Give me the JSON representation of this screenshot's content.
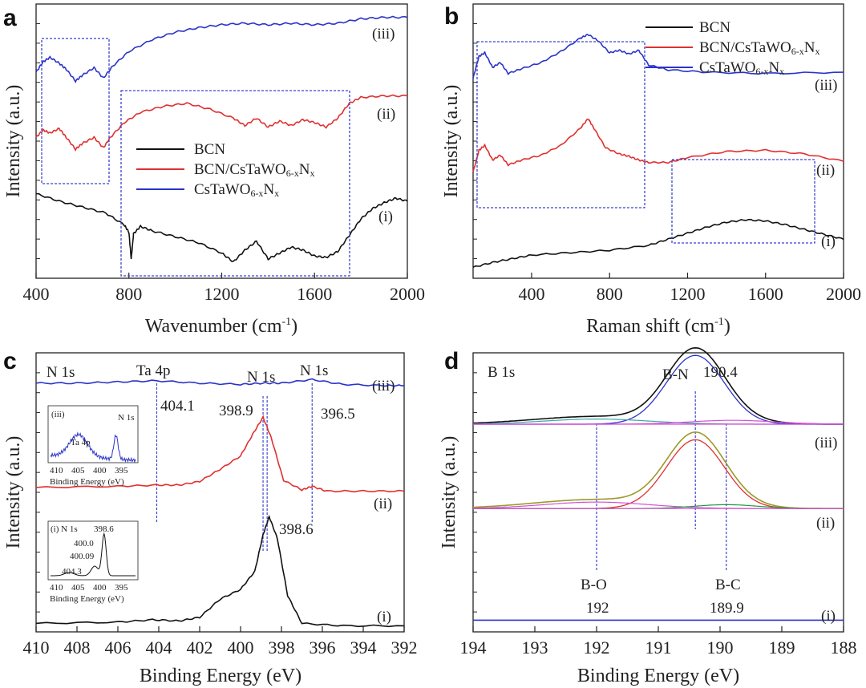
{
  "panels": [
    {
      "id": "a",
      "letter": "a",
      "type": "line",
      "xlabel_main": "Wavenumber (cm",
      "xlabel_sup": "-1",
      "xlabel_tail": ")",
      "ylabel": "Intensity (a.u.)",
      "xlim": [
        400,
        2000
      ],
      "x_ticks": [
        "400",
        "800",
        "1200",
        "1600",
        "2000"
      ],
      "legend": [
        "BCN",
        "BCN/CsTaWO",
        "CsTaWO"
      ],
      "legend_sub": "6-x",
      "legend_n": "N",
      "legend_sub2": "x",
      "curve_labels": [
        "(iii)",
        "(ii)",
        "(i)"
      ],
      "series": [
        {
          "name": "BCN",
          "color": "#111111",
          "y": [
            [
              400,
              0.62
            ],
            [
              500,
              0.57
            ],
            [
              600,
              0.53
            ],
            [
              700,
              0.49
            ],
            [
              780,
              0.41
            ],
            [
              800,
              0.36
            ],
            [
              810,
              0.18
            ],
            [
              820,
              0.35
            ],
            [
              850,
              0.4
            ],
            [
              900,
              0.37
            ],
            [
              1000,
              0.33
            ],
            [
              1100,
              0.29
            ],
            [
              1200,
              0.22
            ],
            [
              1250,
              0.16
            ],
            [
              1300,
              0.24
            ],
            [
              1350,
              0.3
            ],
            [
              1400,
              0.18
            ],
            [
              1450,
              0.22
            ],
            [
              1500,
              0.26
            ],
            [
              1550,
              0.24
            ],
            [
              1600,
              0.2
            ],
            [
              1650,
              0.19
            ],
            [
              1700,
              0.23
            ],
            [
              1750,
              0.34
            ],
            [
              1800,
              0.45
            ],
            [
              1850,
              0.52
            ],
            [
              1900,
              0.56
            ],
            [
              1950,
              0.59
            ],
            [
              2000,
              0.57
            ]
          ]
        },
        {
          "name": "BCN/CsTaWO6-xNx",
          "color": "#e03030",
          "y": [
            [
              400,
              1.0
            ],
            [
              430,
              1.05
            ],
            [
              460,
              1.03
            ],
            [
              500,
              1.06
            ],
            [
              530,
              1.0
            ],
            [
              570,
              0.92
            ],
            [
              600,
              0.96
            ],
            [
              650,
              1.0
            ],
            [
              690,
              0.93
            ],
            [
              720,
              1.0
            ],
            [
              780,
              1.1
            ],
            [
              850,
              1.17
            ],
            [
              950,
              1.21
            ],
            [
              1050,
              1.23
            ],
            [
              1150,
              1.19
            ],
            [
              1250,
              1.13
            ],
            [
              1300,
              1.08
            ],
            [
              1350,
              1.13
            ],
            [
              1400,
              1.07
            ],
            [
              1450,
              1.11
            ],
            [
              1500,
              1.08
            ],
            [
              1550,
              1.12
            ],
            [
              1600,
              1.1
            ],
            [
              1650,
              1.07
            ],
            [
              1700,
              1.13
            ],
            [
              1750,
              1.23
            ],
            [
              1800,
              1.27
            ],
            [
              1900,
              1.28
            ],
            [
              2000,
              1.28
            ]
          ]
        },
        {
          "name": "CsTaWO6-xNx",
          "color": "#2a33c8",
          "y": [
            [
              400,
              1.44
            ],
            [
              430,
              1.51
            ],
            [
              460,
              1.54
            ],
            [
              500,
              1.5
            ],
            [
              530,
              1.46
            ],
            [
              570,
              1.38
            ],
            [
              600,
              1.42
            ],
            [
              650,
              1.47
            ],
            [
              690,
              1.4
            ],
            [
              730,
              1.48
            ],
            [
              800,
              1.58
            ],
            [
              900,
              1.66
            ],
            [
              1000,
              1.71
            ],
            [
              1100,
              1.74
            ],
            [
              1200,
              1.76
            ],
            [
              1300,
              1.77
            ],
            [
              1400,
              1.76
            ],
            [
              1500,
              1.77
            ],
            [
              1600,
              1.76
            ],
            [
              1700,
              1.77
            ],
            [
              1800,
              1.8
            ],
            [
              1900,
              1.81
            ],
            [
              2000,
              1.81
            ]
          ]
        }
      ],
      "ylim": [
        0.05,
        1.9
      ]
    },
    {
      "id": "b",
      "letter": "b",
      "type": "line",
      "xlabel_main": "Raman shift (cm",
      "xlabel_sup": "-1",
      "xlabel_tail": ")",
      "ylabel": "Intensity (a.u.)",
      "xlim": [
        100,
        2000
      ],
      "x_ticks": [
        "400",
        "800",
        "1200",
        "1600",
        "2000"
      ],
      "x_tick_values": [
        400,
        800,
        1200,
        1600,
        2000
      ],
      "legend": [
        "BCN",
        "BCN/CsTaWO",
        "CsTaWO"
      ],
      "legend_sub": "6-x",
      "legend_n": "N",
      "legend_sub2": "x",
      "curve_labels": [
        "(iii)",
        "(ii)",
        "(i)"
      ],
      "series": [
        {
          "name": "BCN",
          "color": "#111111",
          "y": [
            [
              100,
              0.04
            ],
            [
              200,
              0.08
            ],
            [
              300,
              0.11
            ],
            [
              400,
              0.14
            ],
            [
              600,
              0.16
            ],
            [
              800,
              0.18
            ],
            [
              1000,
              0.22
            ],
            [
              1100,
              0.27
            ],
            [
              1200,
              0.32
            ],
            [
              1300,
              0.37
            ],
            [
              1400,
              0.41
            ],
            [
              1500,
              0.43
            ],
            [
              1600,
              0.42
            ],
            [
              1700,
              0.39
            ],
            [
              1800,
              0.35
            ],
            [
              1900,
              0.31
            ],
            [
              2000,
              0.27
            ]
          ]
        },
        {
          "name": "BCN/CsTaWO6-xNx",
          "color": "#e03030",
          "y": [
            [
              100,
              0.82
            ],
            [
              130,
              1.0
            ],
            [
              160,
              1.04
            ],
            [
              200,
              0.92
            ],
            [
              240,
              0.96
            ],
            [
              280,
              0.88
            ],
            [
              350,
              0.92
            ],
            [
              450,
              0.96
            ],
            [
              550,
              1.04
            ],
            [
              650,
              1.18
            ],
            [
              690,
              1.26
            ],
            [
              720,
              1.18
            ],
            [
              780,
              1.02
            ],
            [
              850,
              0.97
            ],
            [
              900,
              0.95
            ],
            [
              950,
              0.92
            ],
            [
              1000,
              0.9
            ],
            [
              1100,
              0.9
            ],
            [
              1200,
              0.94
            ],
            [
              1400,
              0.99
            ],
            [
              1600,
              1.0
            ],
            [
              1800,
              0.97
            ],
            [
              2000,
              0.91
            ]
          ]
        },
        {
          "name": "CsTaWO6-xNx",
          "color": "#2a33c8",
          "y": [
            [
              100,
              1.59
            ],
            [
              130,
              1.77
            ],
            [
              160,
              1.8
            ],
            [
              200,
              1.68
            ],
            [
              240,
              1.72
            ],
            [
              280,
              1.63
            ],
            [
              350,
              1.67
            ],
            [
              450,
              1.72
            ],
            [
              550,
              1.81
            ],
            [
              650,
              1.92
            ],
            [
              690,
              1.95
            ],
            [
              740,
              1.9
            ],
            [
              800,
              1.8
            ],
            [
              850,
              1.82
            ],
            [
              900,
              1.79
            ],
            [
              950,
              1.82
            ],
            [
              1000,
              1.7
            ],
            [
              1100,
              1.66
            ],
            [
              1300,
              1.64
            ],
            [
              1600,
              1.63
            ],
            [
              2000,
              1.64
            ]
          ]
        }
      ],
      "ylim": [
        -0.05,
        2.2
      ]
    },
    {
      "id": "c",
      "letter": "c",
      "type": "line",
      "xlabel_main": "Binding Energy (eV)",
      "ylabel": "Intensity (a.u.)",
      "xlim": [
        410,
        392
      ],
      "x_ticks": [
        "410",
        "408",
        "406",
        "404",
        "402",
        "400",
        "398",
        "396",
        "394",
        "392"
      ],
      "x_tick_values": [
        410,
        408,
        406,
        404,
        402,
        400,
        398,
        396,
        394,
        392
      ],
      "curve_labels": [
        "(iii)",
        "(ii)",
        "(i)"
      ],
      "annotations": [
        "N 1s",
        "Ta 4p",
        "N 1s",
        "N 1s",
        "404.1",
        "398.9",
        "396.5",
        "398.6"
      ],
      "markers_ev": [
        404.1,
        398.9,
        398.7,
        396.5
      ],
      "series": [
        {
          "name": "BCN",
          "color": "#111111",
          "y": [
            [
              410,
              0.02
            ],
            [
              406,
              0.03
            ],
            [
              404.3,
              0.05
            ],
            [
              403,
              0.04
            ],
            [
              402,
              0.07
            ],
            [
              401,
              0.22
            ],
            [
              400,
              0.3
            ],
            [
              399.3,
              0.45
            ],
            [
              398.9,
              0.75
            ],
            [
              398.6,
              0.9
            ],
            [
              398.2,
              0.72
            ],
            [
              397.7,
              0.25
            ],
            [
              397,
              0.02
            ],
            [
              395,
              0.0
            ],
            [
              392,
              0.0
            ]
          ]
        },
        {
          "name": "BCN/CsTaWO6-xNx",
          "color": "#e03030",
          "y": [
            [
              410,
              1.14
            ],
            [
              406,
              1.15
            ],
            [
              404.1,
              1.16
            ],
            [
              403,
              1.16
            ],
            [
              402,
              1.19
            ],
            [
              401,
              1.29
            ],
            [
              400,
              1.4
            ],
            [
              399.4,
              1.58
            ],
            [
              398.9,
              1.72
            ],
            [
              398.5,
              1.55
            ],
            [
              397.9,
              1.2
            ],
            [
              397,
              1.12
            ],
            [
              396.5,
              1.15
            ],
            [
              395.8,
              1.11
            ],
            [
              394,
              1.11
            ],
            [
              392,
              1.11
            ]
          ]
        },
        {
          "name": "CsTaWO6-xNx",
          "color": "#2a33c8",
          "y": [
            [
              410,
              2.0
            ],
            [
              408,
              2.0
            ],
            [
              406,
              2.01
            ],
            [
              404.1,
              2.02
            ],
            [
              402,
              2.0
            ],
            [
              400,
              1.99
            ],
            [
              398.9,
              2.0
            ],
            [
              398,
              2.0
            ],
            [
              396.5,
              2.03
            ],
            [
              395,
              1.99
            ],
            [
              393,
              1.98
            ],
            [
              392,
              1.98
            ]
          ]
        }
      ],
      "ylim": [
        -0.05,
        2.25
      ],
      "inset_iii": {
        "label": "(iii)",
        "peak1": "Ta 4p",
        "peak2": "N 1s",
        "x_ticks": [
          "410",
          "405",
          "400",
          "395"
        ],
        "xlabel": "Binding Energy (eV)"
      },
      "inset_i": {
        "label": "(i) N 1s",
        "peaks": [
          "398.6",
          "400.0",
          "400.09",
          "404.3"
        ],
        "x_ticks": [
          "410",
          "405",
          "400",
          "395"
        ],
        "xlabel": "Binding Energy (eV)"
      }
    },
    {
      "id": "d",
      "letter": "d",
      "type": "line",
      "xlabel_main": "Binding Energy (eV)",
      "ylabel": "Intensity (a.u.)",
      "xlim": [
        194,
        188
      ],
      "x_ticks": [
        "194",
        "193",
        "192",
        "191",
        "190",
        "189",
        "188"
      ],
      "x_tick_values": [
        194,
        193,
        192,
        191,
        190,
        189,
        188
      ],
      "curve_labels": [
        "(iii)",
        "(ii)",
        "(i)"
      ],
      "annotations": [
        "B 1s",
        "B-N",
        "190.4",
        "B-O",
        "192",
        "B-C",
        "189.9"
      ],
      "markers_ev": [
        192,
        190.4,
        189.9
      ],
      "ylim": [
        -0.05,
        2.1
      ]
    }
  ],
  "colors": {
    "black": "#111111",
    "red": "#e03030",
    "blue": "#2a33c8",
    "olive": "#9a9a2a",
    "green": "#1f9a3a",
    "magenta": "#d64fd6",
    "teal": "#3aa7a7",
    "dashed": "#3a44d0"
  }
}
